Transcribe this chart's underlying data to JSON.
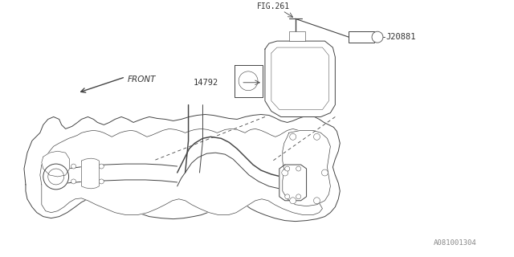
{
  "background_color": "#ffffff",
  "line_color": "#444444",
  "text_color": "#333333",
  "fig_width": 6.4,
  "fig_height": 3.2,
  "dpi": 100,
  "labels": {
    "fig261": "FIG.261",
    "j20881": "J20881",
    "part14792": "14792",
    "front": "FRONT",
    "diagram_id": "A081001304"
  }
}
